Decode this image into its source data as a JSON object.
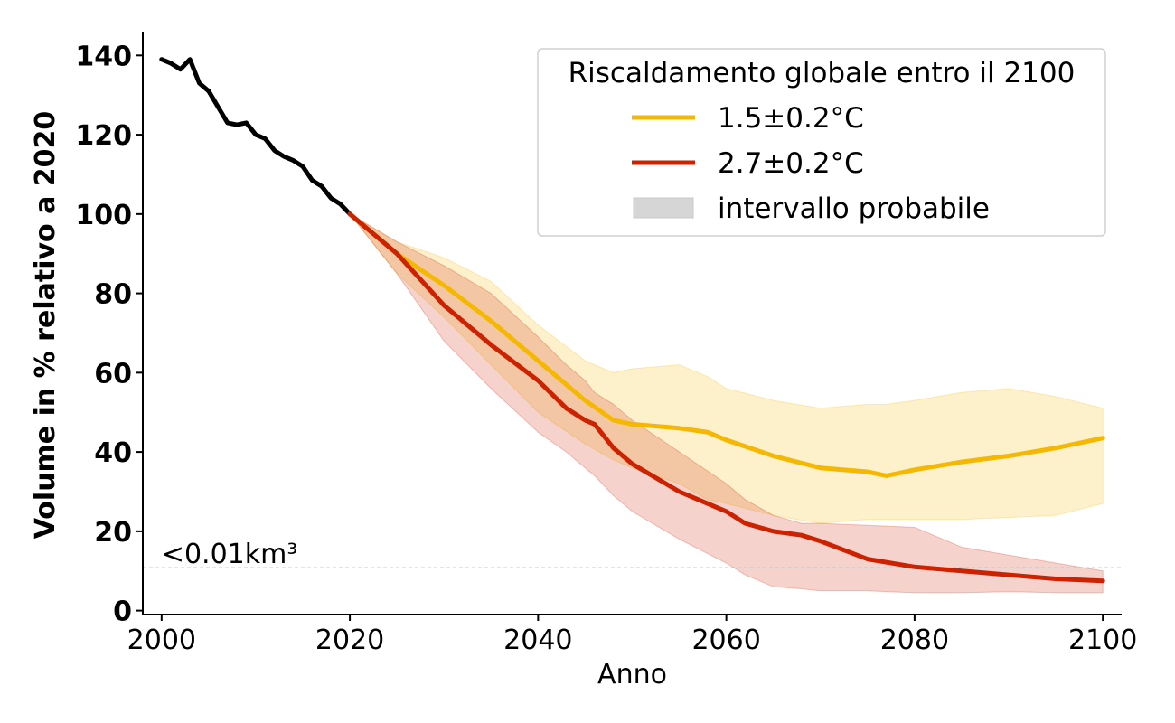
{
  "chart_data": {
    "type": "line",
    "xlabel": "Anno",
    "ylabel": "Volume in % relativo a 2020",
    "xlim": [
      1998,
      2102
    ],
    "ylim": [
      -1,
      146
    ],
    "x_ticks": [
      2000,
      2020,
      2040,
      2060,
      2080,
      2100
    ],
    "y_ticks": [
      0,
      20,
      40,
      60,
      80,
      100,
      120,
      140
    ],
    "threshold": {
      "value": 10.8,
      "label": "<0.01km³",
      "color": "#bbbbbb"
    },
    "legend": {
      "title": "Riscaldamento globale entro il 2100",
      "placement": "top-right",
      "items": [
        {
          "label": "1.5±0.2°C",
          "color": "#f5b800",
          "kind": "line"
        },
        {
          "label": "2.7±0.2°C",
          "color": "#cc2200",
          "kind": "line"
        },
        {
          "label": "intervallo probabile",
          "color": "#d6d6d6",
          "kind": "patch"
        }
      ]
    },
    "series": [
      {
        "color": "#000000",
        "x": [
          2000,
          2001,
          2002,
          2003,
          2004,
          2005,
          2006,
          2007,
          2008,
          2009,
          2010,
          2011,
          2012,
          2013,
          2014,
          2015,
          2016,
          2017,
          2018,
          2019,
          2020
        ],
        "y": [
          139,
          138,
          136.5,
          139,
          133,
          131,
          127,
          123,
          122.5,
          123,
          120,
          119,
          116,
          114.5,
          113.5,
          112,
          108.5,
          107,
          104,
          102.5,
          100
        ]
      },
      {
        "name": "1.5±0.2°C",
        "color": "#f5b800",
        "x": [
          2020,
          2025,
          2030,
          2035,
          2040,
          2045,
          2048,
          2050,
          2055,
          2058,
          2060,
          2065,
          2070,
          2075,
          2077,
          2080,
          2085,
          2090,
          2095,
          2100
        ],
        "y": [
          100,
          90,
          82,
          73,
          63,
          53,
          48,
          47,
          46,
          45,
          43,
          39,
          36,
          35,
          34,
          35.5,
          37.5,
          39,
          41,
          43.5
        ],
        "lower": [
          100,
          85,
          74,
          62,
          50,
          42,
          38,
          36,
          32,
          28,
          27,
          24,
          22,
          23,
          23,
          23,
          23,
          23.5,
          24,
          27
        ],
        "upper": [
          100,
          93,
          89,
          83,
          72,
          63,
          60,
          61,
          62,
          59,
          56,
          53,
          51,
          52,
          52,
          53,
          55,
          56,
          54,
          51
        ]
      },
      {
        "name": "2.7±0.2°C",
        "color": "#cc2200",
        "x": [
          2020,
          2025,
          2030,
          2035,
          2040,
          2043,
          2045,
          2046,
          2048,
          2050,
          2055,
          2060,
          2062,
          2065,
          2068,
          2070,
          2075,
          2080,
          2085,
          2090,
          2095,
          2100
        ],
        "y": [
          100,
          90,
          77,
          67,
          58,
          51,
          48,
          47,
          41,
          37,
          30,
          25,
          22,
          20,
          19,
          17.5,
          13,
          11,
          10,
          9,
          8,
          7.5
        ],
        "lower": [
          100,
          85,
          68,
          56,
          45,
          40,
          36,
          34,
          29,
          25,
          18,
          12,
          9,
          6,
          5.5,
          5,
          5,
          4.5,
          4.5,
          4.8,
          4.5,
          4.5
        ],
        "upper": [
          100,
          93,
          87,
          80,
          69,
          62,
          58,
          55,
          52,
          48,
          40,
          32,
          28,
          24,
          22,
          22,
          21.5,
          21,
          16,
          14,
          12,
          10
        ]
      }
    ]
  }
}
